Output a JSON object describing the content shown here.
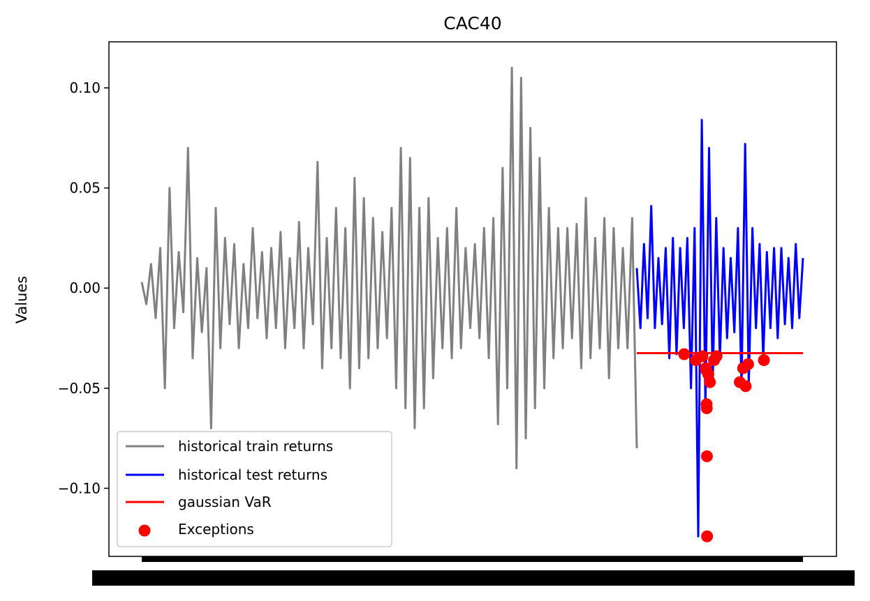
{
  "chart_data": {
    "type": "line",
    "title": "CAC40",
    "xlabel": "",
    "ylabel": "Values",
    "ylim": [
      -0.134,
      0.123
    ],
    "ytick_values": [
      -0.1,
      -0.05,
      0.0,
      0.05,
      0.1
    ],
    "ytick_labels": [
      "−0.10",
      "−0.05",
      "0.00",
      "0.05",
      "0.10"
    ],
    "xticks": "dense overlapping date labels (illegible)",
    "var_level": -0.0325,
    "series": [
      {
        "name": "historical train returns",
        "color": "#808080",
        "style": "line",
        "values": [
          0.003,
          -0.008,
          0.012,
          -0.015,
          0.02,
          -0.05,
          0.05,
          -0.02,
          0.018,
          -0.012,
          0.07,
          -0.035,
          0.015,
          -0.022,
          0.01,
          -0.07,
          0.04,
          -0.03,
          0.025,
          -0.018,
          0.022,
          -0.03,
          0.012,
          -0.02,
          0.03,
          -0.015,
          0.018,
          -0.025,
          0.02,
          -0.02,
          0.028,
          -0.03,
          0.015,
          -0.02,
          0.033,
          -0.03,
          0.02,
          -0.018,
          0.063,
          -0.04,
          0.025,
          -0.03,
          0.04,
          -0.035,
          0.03,
          -0.05,
          0.055,
          -0.04,
          0.045,
          -0.035,
          0.035,
          -0.03,
          0.028,
          -0.025,
          0.04,
          -0.05,
          0.07,
          -0.06,
          0.065,
          -0.07,
          0.04,
          -0.06,
          0.045,
          -0.045,
          0.025,
          -0.03,
          0.03,
          -0.035,
          0.04,
          -0.03,
          0.02,
          -0.02,
          0.022,
          -0.025,
          0.03,
          -0.035,
          0.035,
          -0.068,
          0.06,
          -0.05,
          0.11,
          -0.09,
          0.105,
          -0.075,
          0.08,
          -0.06,
          0.065,
          -0.05,
          0.04,
          -0.035,
          0.03,
          -0.03,
          0.03,
          -0.025,
          0.032,
          -0.04,
          0.045,
          -0.035,
          0.025,
          -0.03,
          0.035,
          -0.045,
          0.03,
          -0.03,
          0.02,
          -0.03,
          0.035,
          -0.08
        ]
      },
      {
        "name": "historical test returns",
        "color": "#0000ff",
        "style": "line",
        "values": [
          0.01,
          -0.02,
          0.022,
          -0.015,
          0.041,
          -0.02,
          0.015,
          -0.018,
          0.02,
          -0.035,
          0.025,
          -0.033,
          0.02,
          -0.02,
          0.025,
          -0.05,
          0.03,
          -0.124,
          0.084,
          -0.06,
          0.07,
          -0.048,
          0.035,
          -0.035,
          0.02,
          -0.025,
          0.015,
          -0.022,
          0.03,
          -0.05,
          0.072,
          -0.048,
          0.03,
          -0.02,
          0.022,
          -0.035,
          0.018,
          -0.02,
          0.02,
          -0.025,
          0.02,
          -0.018,
          0.015,
          -0.02,
          0.022,
          -0.015,
          0.015
        ]
      },
      {
        "name": "gaussian VaR",
        "color": "#ff0000",
        "style": "line"
      },
      {
        "name": "Exceptions",
        "color": "#ff0000",
        "style": "scatter",
        "points": [
          {
            "t": 0.285,
            "y": -0.033
          },
          {
            "t": 0.355,
            "y": -0.036
          },
          {
            "t": 0.395,
            "y": -0.034
          },
          {
            "t": 0.415,
            "y": -0.04
          },
          {
            "t": 0.418,
            "y": -0.041
          },
          {
            "t": 0.42,
            "y": -0.058
          },
          {
            "t": 0.421,
            "y": -0.06
          },
          {
            "t": 0.422,
            "y": -0.084
          },
          {
            "t": 0.423,
            "y": -0.124
          },
          {
            "t": 0.43,
            "y": -0.043
          },
          {
            "t": 0.44,
            "y": -0.047
          },
          {
            "t": 0.465,
            "y": -0.036
          },
          {
            "t": 0.48,
            "y": -0.034
          },
          {
            "t": 0.62,
            "y": -0.047
          },
          {
            "t": 0.64,
            "y": -0.04
          },
          {
            "t": 0.655,
            "y": -0.049
          },
          {
            "t": 0.67,
            "y": -0.038
          },
          {
            "t": 0.765,
            "y": -0.036
          }
        ]
      }
    ],
    "legend": {
      "placement": "lower-left",
      "entries": [
        "historical train returns",
        "historical test returns",
        "gaussian VaR",
        "Exceptions"
      ]
    }
  }
}
